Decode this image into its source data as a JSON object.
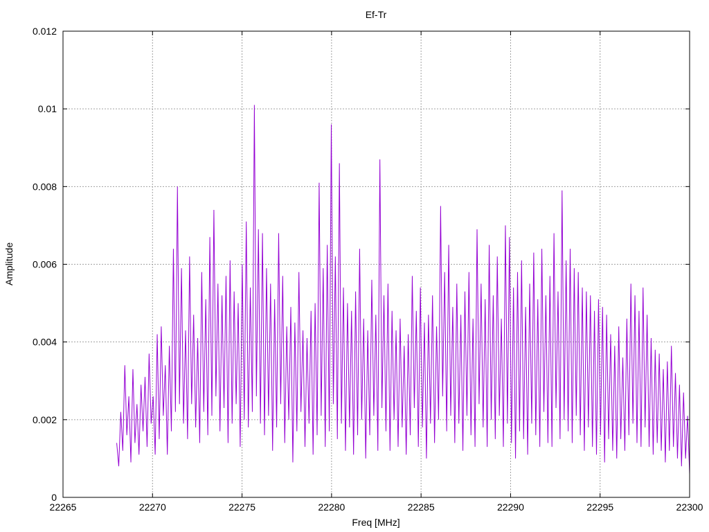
{
  "chart_data": {
    "type": "line",
    "title": "Ef-Tr",
    "xlabel": "Freq [MHz]",
    "ylabel": "Amplitude",
    "xlim": [
      22265,
      22300
    ],
    "ylim": [
      0,
      0.012
    ],
    "x_ticks": [
      "22265",
      "22270",
      "22275",
      "22280",
      "22285",
      "22290",
      "22295",
      "22300"
    ],
    "y_ticks": [
      "0",
      "0.002",
      "0.004",
      "0.006",
      "0.008",
      "0.01",
      "0.012"
    ],
    "grid": true,
    "series": [
      {
        "color": "#9400d3",
        "x_start": 22268.0,
        "x_end": 22300.0,
        "values": [
          0.0014,
          0.0008,
          0.0022,
          0.0012,
          0.0034,
          0.0016,
          0.0026,
          0.0009,
          0.0033,
          0.0014,
          0.0024,
          0.0011,
          0.0029,
          0.0017,
          0.0031,
          0.0013,
          0.0037,
          0.0019,
          0.0026,
          0.0011,
          0.0042,
          0.0015,
          0.0044,
          0.0021,
          0.0034,
          0.0011,
          0.0039,
          0.0017,
          0.0064,
          0.0022,
          0.008,
          0.0024,
          0.0059,
          0.0019,
          0.0043,
          0.0015,
          0.0062,
          0.0024,
          0.0047,
          0.0018,
          0.0041,
          0.0014,
          0.0058,
          0.0022,
          0.0051,
          0.0016,
          0.0067,
          0.0021,
          0.0074,
          0.0026,
          0.0055,
          0.0017,
          0.0052,
          0.0023,
          0.0057,
          0.0014,
          0.0061,
          0.0019,
          0.0053,
          0.0024,
          0.005,
          0.0013,
          0.006,
          0.002,
          0.0071,
          0.0018,
          0.0054,
          0.0022,
          0.0101,
          0.0026,
          0.0069,
          0.0019,
          0.0068,
          0.0016,
          0.0059,
          0.0021,
          0.0055,
          0.0012,
          0.0051,
          0.0018,
          0.0068,
          0.0024,
          0.0057,
          0.0014,
          0.0044,
          0.002,
          0.0049,
          0.0009,
          0.0045,
          0.0017,
          0.0058,
          0.0022,
          0.0043,
          0.0013,
          0.0041,
          0.0019,
          0.0048,
          0.0011,
          0.005,
          0.0016,
          0.0081,
          0.0021,
          0.0059,
          0.0013,
          0.0065,
          0.0017,
          0.0096,
          0.0024,
          0.0062,
          0.0015,
          0.0086,
          0.0019,
          0.0054,
          0.0012,
          0.005,
          0.0018,
          0.0048,
          0.0011,
          0.0053,
          0.0016,
          0.0064,
          0.002,
          0.0046,
          0.001,
          0.0043,
          0.0016,
          0.0056,
          0.0021,
          0.0047,
          0.0012,
          0.0087,
          0.0023,
          0.0052,
          0.0017,
          0.0055,
          0.0012,
          0.0048,
          0.002,
          0.0043,
          0.0013,
          0.0046,
          0.0018,
          0.0039,
          0.0011,
          0.0042,
          0.0016,
          0.0057,
          0.0023,
          0.0048,
          0.0013,
          0.0054,
          0.0018,
          0.0045,
          0.001,
          0.0047,
          0.0019,
          0.0052,
          0.0014,
          0.0044,
          0.002,
          0.0075,
          0.0026,
          0.0058,
          0.0017,
          0.0065,
          0.0021,
          0.0049,
          0.0014,
          0.0055,
          0.0019,
          0.0047,
          0.0012,
          0.0053,
          0.0021,
          0.0058,
          0.0016,
          0.0046,
          0.0013,
          0.0069,
          0.0024,
          0.0055,
          0.0018,
          0.0051,
          0.0013,
          0.0065,
          0.002,
          0.0052,
          0.0015,
          0.0062,
          0.0021,
          0.0046,
          0.0013,
          0.007,
          0.0019,
          0.0067,
          0.0014,
          0.0054,
          0.001,
          0.0058,
          0.0017,
          0.0061,
          0.0015,
          0.0049,
          0.0011,
          0.0055,
          0.0019,
          0.0063,
          0.0016,
          0.0051,
          0.0013,
          0.0064,
          0.0022,
          0.0052,
          0.0014,
          0.0057,
          0.0013,
          0.0068,
          0.0023,
          0.0053,
          0.0015,
          0.0079,
          0.002,
          0.0061,
          0.0017,
          0.0064,
          0.0014,
          0.0059,
          0.0021,
          0.0058,
          0.0016,
          0.0054,
          0.0012,
          0.0053,
          0.0018,
          0.0052,
          0.0013,
          0.0048,
          0.0011,
          0.0051,
          0.0016,
          0.0049,
          0.0009,
          0.0047,
          0.0015,
          0.0042,
          0.0012,
          0.0039,
          0.001,
          0.0044,
          0.0015,
          0.0036,
          0.0012,
          0.0046,
          0.0016,
          0.0055,
          0.0019,
          0.0052,
          0.0014,
          0.0048,
          0.0013,
          0.0054,
          0.0018,
          0.0047,
          0.0013,
          0.0041,
          0.0011,
          0.0038,
          0.0014,
          0.0037,
          0.0012,
          0.0033,
          0.0009,
          0.0035,
          0.0012,
          0.0039,
          0.0013,
          0.0032,
          0.001,
          0.0029,
          0.0008,
          0.0027,
          0.001,
          0.0021,
          0.0006
        ]
      }
    ]
  }
}
